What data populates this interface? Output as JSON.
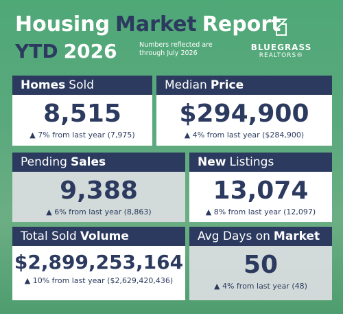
{
  "header": {
    "title": [
      {
        "text": "Housing",
        "accent": false
      },
      {
        "text": "Market",
        "accent": true
      },
      {
        "text": "Report",
        "accent": false
      }
    ],
    "subtitle": [
      {
        "text": "YTD",
        "accent": true
      },
      {
        "text": "2026",
        "accent": false
      }
    ],
    "note": [
      "Numbers reflected are",
      "through July 2026"
    ],
    "logo": {
      "name": "BLUEGRASS",
      "tagline": "REALTORS®"
    }
  },
  "cards": [
    {
      "label": [
        {
          "text": "Homes",
          "bold": true
        },
        {
          "text": "Sold",
          "bold": false
        }
      ],
      "value": "8,515",
      "change": "▲ 7% from last year (7,975)",
      "shade": false
    },
    {
      "label": [
        {
          "text": "Median",
          "bold": false
        },
        {
          "text": "Price",
          "bold": true
        }
      ],
      "value": "$294,900",
      "change": "▲ 4% from last year ($284,900)",
      "shade": false
    },
    {
      "label": [
        {
          "text": "Pending",
          "bold": false
        },
        {
          "text": "Sales",
          "bold": true
        }
      ],
      "value": "9,388",
      "change": "▲ 6% from last year (8,863)",
      "shade": true
    },
    {
      "label": [
        {
          "text": "New",
          "bold": true
        },
        {
          "text": "Listings",
          "bold": false
        }
      ],
      "value": "13,074",
      "change": "▲ 8% from last year (12,097)",
      "shade": false
    },
    {
      "label": [
        {
          "text": "Total Sold",
          "bold": false
        },
        {
          "text": "Volume",
          "bold": true
        }
      ],
      "value": "$2,899,253,164",
      "change": "▲ 10% from last year ($2,629,420,436)",
      "shade": false
    },
    {
      "label": [
        {
          "text": "Avg Days on",
          "bold": false
        },
        {
          "text": "Market",
          "bold": true
        }
      ],
      "value": "50",
      "change": "▲ 4% from last year (48)",
      "shade": true
    }
  ]
}
